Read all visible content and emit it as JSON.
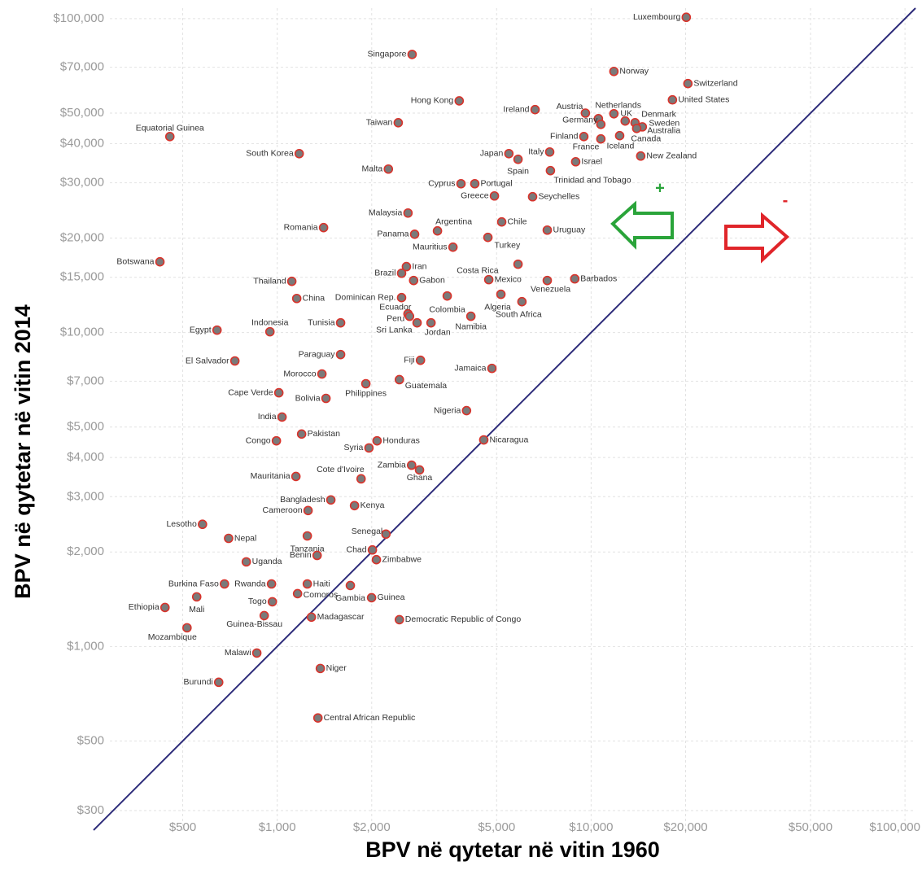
{
  "chart_data": {
    "type": "scatter",
    "xlabel": "BPV në qytetar në vitin 1960",
    "ylabel": "BPV në qytetar në vitin 2014",
    "log_x": true,
    "log_y": true,
    "grid": true,
    "point_color": "#7a7a7a",
    "point_edge_color": "#d9332b",
    "line_color": "#2e2c7a",
    "xlim": [
      260,
      108000
    ],
    "ylim": [
      260,
      108000
    ],
    "xticks": [
      {
        "value": 500,
        "label": "$500"
      },
      {
        "value": 1000,
        "label": "$1,000"
      },
      {
        "value": 2000,
        "label": "$2,000"
      },
      {
        "value": 5000,
        "label": "$5,000"
      },
      {
        "value": 10000,
        "label": "$10,000"
      },
      {
        "value": 20000,
        "label": "$20,000"
      },
      {
        "value": 50000,
        "label": "$50,000"
      },
      {
        "value": 100000,
        "label": "$100,000"
      }
    ],
    "yticks": [
      {
        "value": 300,
        "label": "$300"
      },
      {
        "value": 500,
        "label": "$500"
      },
      {
        "value": 1000,
        "label": "$1,000"
      },
      {
        "value": 2000,
        "label": "$2,000"
      },
      {
        "value": 3000,
        "label": "$3,000"
      },
      {
        "value": 4000,
        "label": "$4,000"
      },
      {
        "value": 5000,
        "label": "$5,000"
      },
      {
        "value": 7000,
        "label": "$7,000"
      },
      {
        "value": 10000,
        "label": "$10,000"
      },
      {
        "value": 15000,
        "label": "$15,000"
      },
      {
        "value": 20000,
        "label": "$20,000"
      },
      {
        "value": 30000,
        "label": "$30,000"
      },
      {
        "value": 40000,
        "label": "$40,000"
      },
      {
        "value": 50000,
        "label": "$50,000"
      },
      {
        "value": 70000,
        "label": "$70,000"
      },
      {
        "value": 100000,
        "label": "$100,000"
      }
    ],
    "annotations": [
      "+",
      "-"
    ],
    "labels": [
      "Luxembourg",
      "Singapore",
      "Norway",
      "Switzerland",
      "United States",
      "Hong Kong",
      "Ireland",
      "Austria",
      "Netherlands",
      "Germany",
      "UK",
      "Denmark",
      "Sweden",
      "Australia",
      "Canada",
      "Finland",
      "France",
      "Iceland",
      "Taiwan",
      "Equatorial Guinea",
      "Japan",
      "Italy",
      "Spain",
      "Israel",
      "New Zealand",
      "South Korea",
      "Malta",
      "Trinidad and Tobago",
      "Cyprus",
      "Portugal",
      "Greece",
      "Seychelles",
      "Malaysia",
      "Chile",
      "Argentina",
      "Uruguay",
      "Romania",
      "Panama",
      "Turkey",
      "Mauritius",
      "Botswana",
      "Iran",
      "Costa Rica",
      "Brazil",
      "Gabon",
      "Mexico",
      "Barbados",
      "Venezuela",
      "Thailand",
      "Dominican Rep.",
      "Algeria",
      "South Africa",
      "China",
      "Colombia",
      "Ecuador",
      "Peru",
      "Namibia",
      "Jordan",
      "Sri Lanka",
      "Tunisia",
      "Egypt",
      "Indonesia",
      "Paraguay",
      "Fiji",
      "El Salvador",
      "Jamaica",
      "Morocco",
      "Guatemala",
      "Philippines",
      "Cape Verde",
      "Bolivia",
      "Nigeria",
      "India",
      "Pakistan",
      "Nicaragua",
      "Congo",
      "Honduras",
      "Syria",
      "Zambia",
      "Ghana",
      "Mauritania",
      "Cote d'Ivoire",
      "Bangladesh",
      "Kenya",
      "Cameroon",
      "Lesotho",
      "Senegal",
      "Tanzania",
      "Nepal",
      "Chad",
      "Benin",
      "Zimbabwe",
      "Uganda",
      "Burkina Faso",
      "Rwanda",
      "Haiti",
      "Gambia",
      "Comoros",
      "Togo",
      "Guinea",
      "Mali",
      "Ethiopia",
      "Guinea-Bissau",
      "Madagascar",
      "Democratic Republic of Congo",
      "Mozambique",
      "Malawi",
      "Niger",
      "Burundi",
      "Central African Republic"
    ],
    "x": [
      20100,
      2690,
      11820,
      20340,
      18160,
      3800,
      6630,
      9590,
      10550,
      10740,
      11820,
      12840,
      13800,
      14560,
      13970,
      9480,
      10740,
      12330,
      2430,
      455,
      5470,
      7380,
      5850,
      8930,
      14390,
      1175,
      2260,
      7420,
      3850,
      4260,
      4920,
      6510,
      2610,
      5190,
      3240,
      7250,
      1405,
      2740,
      4690,
      3630,
      423,
      2580,
      5850,
      2490,
      2720,
      4720,
      8870,
      7250,
      1113,
      2490,
      5160,
      6020,
      1154,
      3480,
      2610,
      2640,
      4140,
      3090,
      2790,
      1592,
      643,
      948,
      1592,
      2860,
      733,
      4830,
      1388,
      2450,
      1916,
      1012,
      1430,
      4010,
      1036,
      1196,
      4550,
      994,
      2080,
      1960,
      2680,
      2840,
      1147,
      1850,
      1482,
      1763,
      1254,
      578,
      2220,
      1247,
      700,
      2010,
      1340,
      2070,
      797,
      679,
      959,
      1247,
      1710,
      1161,
      965,
      1998,
      554,
      439,
      909,
      1285,
      2450,
      516,
      861,
      1372,
      651,
      1348
    ],
    "values": [
      101000,
      76900,
      67900,
      62100,
      55100,
      54700,
      51300,
      50000,
      48000,
      46050,
      49770,
      47190,
      46600,
      45210,
      44700,
      42100,
      41380,
      42380,
      46600,
      42100,
      37150,
      37600,
      35640,
      35000,
      36500,
      37150,
      33170,
      32790,
      29790,
      29790,
      27240,
      27080,
      24030,
      22510,
      21080,
      21200,
      21590,
      20570,
      20100,
      18710,
      16800,
      16220,
      16510,
      15450,
      14650,
      14740,
      14830,
      14650,
      14560,
      12920,
      13240,
      12540,
      12840,
      13080,
      11470,
      11270,
      11270,
      10740,
      10740,
      10740,
      10180,
      10060,
      8510,
      8160,
      8120,
      7690,
      7380,
      7080,
      6870,
      6430,
      6170,
      5640,
      5380,
      4750,
      4550,
      4520,
      4520,
      4290,
      3780,
      3650,
      3480,
      3420,
      2930,
      2810,
      2710,
      2450,
      2280,
      2250,
      2210,
      2030,
      1950,
      1890,
      1860,
      1582,
      1582,
      1582,
      1564,
      1473,
      1388,
      1430,
      1439,
      1331,
      1254,
      1240,
      1217,
      1147,
      953,
      851,
      769,
      592
    ]
  }
}
